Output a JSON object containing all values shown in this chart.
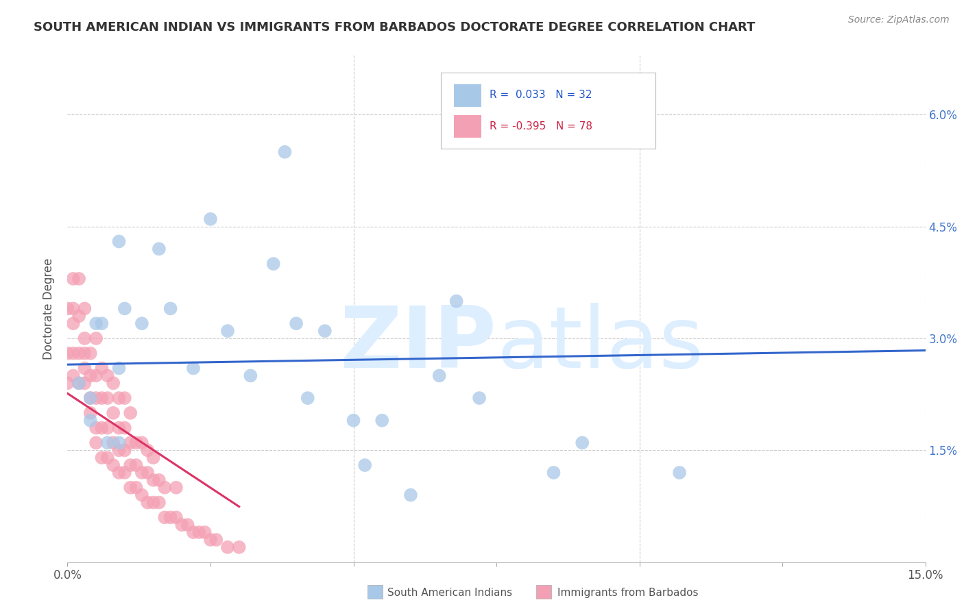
{
  "title": "SOUTH AMERICAN INDIAN VS IMMIGRANTS FROM BARBADOS DOCTORATE DEGREE CORRELATION CHART",
  "source": "Source: ZipAtlas.com",
  "ylabel": "Doctorate Degree",
  "xlim": [
    0,
    0.15
  ],
  "ylim": [
    0,
    0.068
  ],
  "xticks": [
    0.0,
    0.025,
    0.05,
    0.075,
    0.1,
    0.125,
    0.15
  ],
  "xtick_labels_show": [
    "0.0%",
    "",
    "",
    "",
    "",
    "",
    "15.0%"
  ],
  "yticks": [
    0.0,
    0.015,
    0.03,
    0.045,
    0.06
  ],
  "ytick_labels": [
    "",
    "1.5%",
    "3.0%",
    "4.5%",
    "6.0%"
  ],
  "blue_R": 0.033,
  "blue_N": 32,
  "pink_R": -0.395,
  "pink_N": 78,
  "blue_color": "#a8c8e8",
  "pink_color": "#f4a0b4",
  "trend_blue_color": "#3366cc",
  "trend_pink_color": "#dd3366",
  "blue_x": [
    0.002,
    0.004,
    0.004,
    0.005,
    0.006,
    0.007,
    0.009,
    0.009,
    0.009,
    0.01,
    0.013,
    0.016,
    0.018,
    0.022,
    0.025,
    0.028,
    0.032,
    0.036,
    0.038,
    0.04,
    0.042,
    0.045,
    0.05,
    0.052,
    0.055,
    0.06,
    0.065,
    0.068,
    0.072,
    0.085,
    0.09,
    0.107
  ],
  "blue_y": [
    0.024,
    0.019,
    0.022,
    0.032,
    0.032,
    0.016,
    0.043,
    0.016,
    0.026,
    0.034,
    0.032,
    0.042,
    0.034,
    0.026,
    0.046,
    0.031,
    0.025,
    0.04,
    0.055,
    0.032,
    0.022,
    0.031,
    0.019,
    0.013,
    0.019,
    0.009,
    0.025,
    0.035,
    0.022,
    0.012,
    0.016,
    0.012
  ],
  "pink_x": [
    0.0,
    0.0,
    0.0,
    0.001,
    0.001,
    0.001,
    0.001,
    0.001,
    0.002,
    0.002,
    0.002,
    0.002,
    0.003,
    0.003,
    0.003,
    0.003,
    0.003,
    0.004,
    0.004,
    0.004,
    0.004,
    0.005,
    0.005,
    0.005,
    0.005,
    0.005,
    0.006,
    0.006,
    0.006,
    0.006,
    0.007,
    0.007,
    0.007,
    0.007,
    0.008,
    0.008,
    0.008,
    0.008,
    0.009,
    0.009,
    0.009,
    0.009,
    0.01,
    0.01,
    0.01,
    0.01,
    0.011,
    0.011,
    0.011,
    0.011,
    0.012,
    0.012,
    0.012,
    0.013,
    0.013,
    0.013,
    0.014,
    0.014,
    0.014,
    0.015,
    0.015,
    0.015,
    0.016,
    0.016,
    0.017,
    0.017,
    0.018,
    0.019,
    0.019,
    0.02,
    0.021,
    0.022,
    0.023,
    0.024,
    0.025,
    0.026,
    0.028,
    0.03
  ],
  "pink_y": [
    0.024,
    0.028,
    0.034,
    0.025,
    0.028,
    0.032,
    0.034,
    0.038,
    0.024,
    0.028,
    0.033,
    0.038,
    0.024,
    0.026,
    0.03,
    0.034,
    0.028,
    0.02,
    0.022,
    0.025,
    0.028,
    0.016,
    0.018,
    0.022,
    0.025,
    0.03,
    0.014,
    0.018,
    0.022,
    0.026,
    0.014,
    0.018,
    0.022,
    0.025,
    0.013,
    0.016,
    0.02,
    0.024,
    0.012,
    0.015,
    0.018,
    0.022,
    0.012,
    0.015,
    0.018,
    0.022,
    0.01,
    0.013,
    0.016,
    0.02,
    0.01,
    0.013,
    0.016,
    0.009,
    0.012,
    0.016,
    0.008,
    0.012,
    0.015,
    0.008,
    0.011,
    0.014,
    0.008,
    0.011,
    0.006,
    0.01,
    0.006,
    0.006,
    0.01,
    0.005,
    0.005,
    0.004,
    0.004,
    0.004,
    0.003,
    0.003,
    0.002,
    0.002
  ],
  "background_color": "#ffffff",
  "grid_color": "#cccccc",
  "watermark_zip": "ZIP",
  "watermark_atlas": "atlas",
  "watermark_color": "#ddeeff",
  "figsize": [
    14.06,
    8.92
  ],
  "dpi": 100
}
